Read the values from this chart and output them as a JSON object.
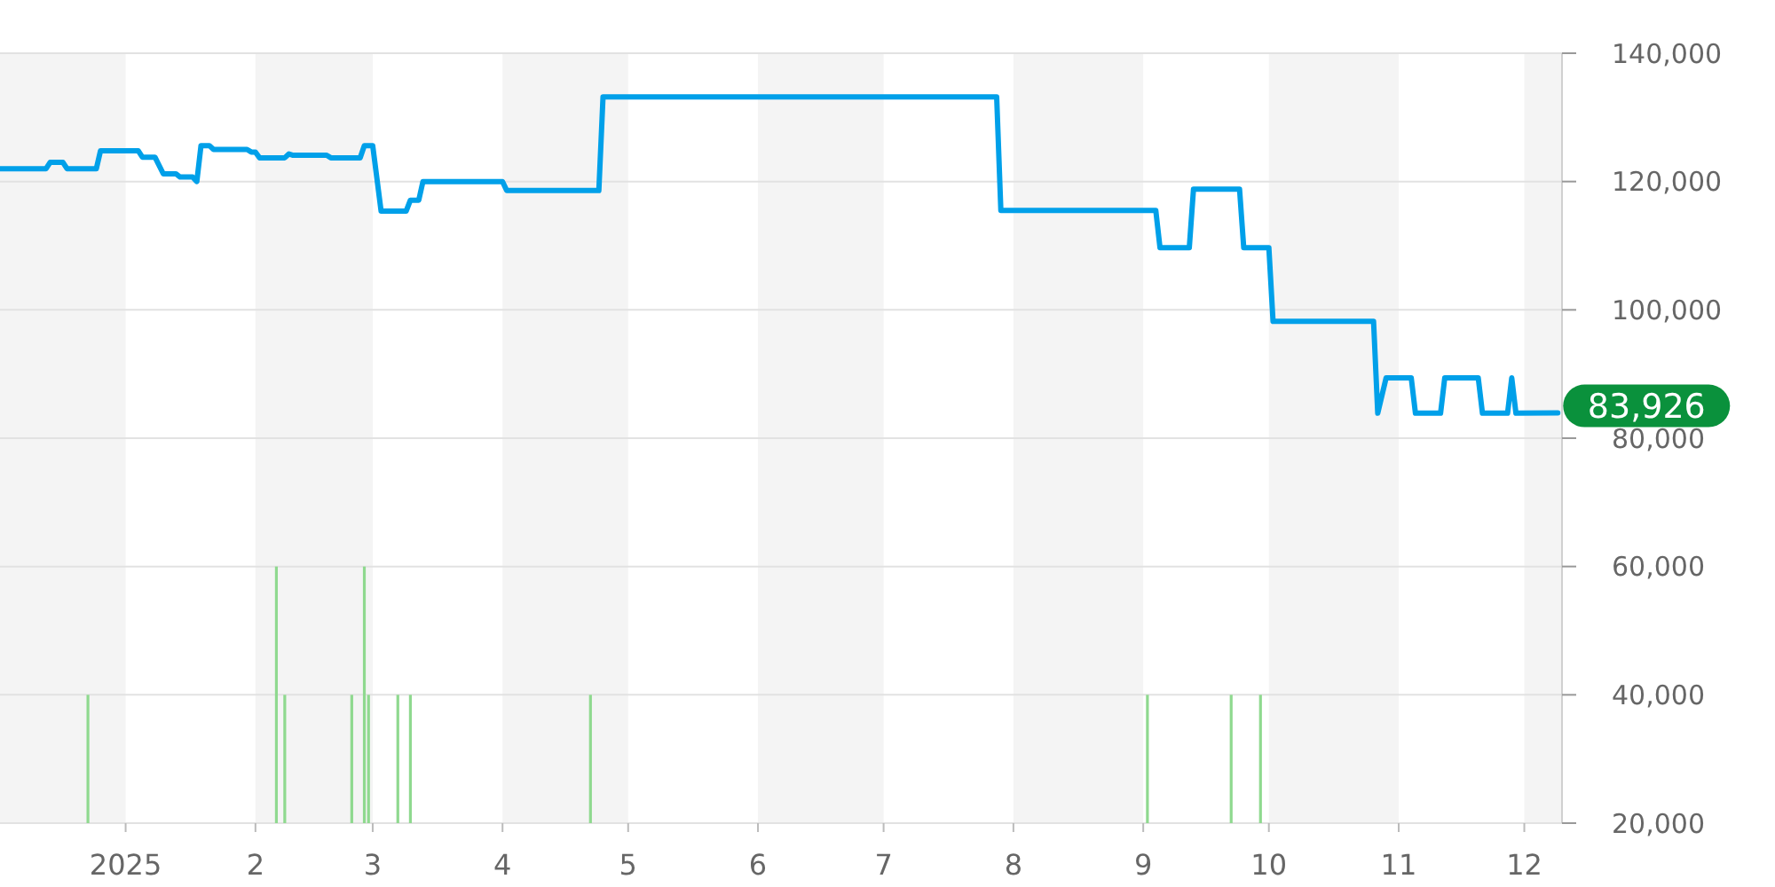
{
  "chart_data": {
    "type": "line",
    "xlim": [
      "2024-12-02",
      "2025-12-10"
    ],
    "xticks": [
      {
        "value": "2025-01-01",
        "label": "2025"
      },
      {
        "value": "2025-02-01",
        "label": "2"
      },
      {
        "value": "2025-03-01",
        "label": "3"
      },
      {
        "value": "2025-04-01",
        "label": "4"
      },
      {
        "value": "2025-05-01",
        "label": "5"
      },
      {
        "value": "2025-06-01",
        "label": "6"
      },
      {
        "value": "2025-07-01",
        "label": "7"
      },
      {
        "value": "2025-08-01",
        "label": "8"
      },
      {
        "value": "2025-09-01",
        "label": "9"
      },
      {
        "value": "2025-10-01",
        "label": "10"
      },
      {
        "value": "2025-11-01",
        "label": "11"
      },
      {
        "value": "2025-12-01",
        "label": "12"
      }
    ],
    "ylim": [
      20000,
      140000
    ],
    "yticks": [
      {
        "value": 20000,
        "label": "20,000"
      },
      {
        "value": 40000,
        "label": "40,000"
      },
      {
        "value": 60000,
        "label": "60,000"
      },
      {
        "value": 80000,
        "label": "80,000"
      },
      {
        "value": 100000,
        "label": "100,000"
      },
      {
        "value": 120000,
        "label": "120,000"
      },
      {
        "value": 140000,
        "label": "140,000"
      }
    ],
    "grid": "y",
    "bands": [
      {
        "axis": "x",
        "from": "2024-12-02",
        "to": "2025-01-01",
        "color": "#f4f4f4"
      },
      {
        "axis": "x",
        "from": "2025-02-01",
        "to": "2025-03-01",
        "color": "#f4f4f4"
      },
      {
        "axis": "x",
        "from": "2025-04-01",
        "to": "2025-05-01",
        "color": "#f4f4f4"
      },
      {
        "axis": "x",
        "from": "2025-06-01",
        "to": "2025-07-01",
        "color": "#f4f4f4"
      },
      {
        "axis": "x",
        "from": "2025-08-01",
        "to": "2025-09-01",
        "color": "#f4f4f4"
      },
      {
        "axis": "x",
        "from": "2025-10-01",
        "to": "2025-11-01",
        "color": "#f4f4f4"
      },
      {
        "axis": "x",
        "from": "2025-12-01",
        "to": "2025-12-10",
        "color": "#f4f4f4"
      }
    ],
    "series": [
      {
        "type": "bar",
        "color": "#8fd98f",
        "x": [
          "2024-12-23",
          "2025-02-06",
          "2025-02-08",
          "2025-02-24",
          "2025-02-27",
          "2025-02-28",
          "2025-03-07",
          "2025-03-10",
          "2025-04-22",
          "2025-09-02",
          "2025-09-22",
          "2025-09-29"
        ],
        "values": [
          40000,
          60000,
          40000,
          40000,
          60000,
          40000,
          40000,
          40000,
          40000,
          40000,
          40000,
          40000
        ]
      },
      {
        "color": "#00a0e9",
        "x": [
          "2024-12-02",
          "2024-12-13",
          "2024-12-14",
          "2024-12-17",
          "2024-12-18",
          "2024-12-25",
          "2024-12-26",
          "2025-01-04",
          "2025-01-05",
          "2025-01-08",
          "2025-01-10",
          "2025-01-13",
          "2025-01-14",
          "2025-01-17",
          "2025-01-18",
          "2025-01-19",
          "2025-01-21",
          "2025-01-22",
          "2025-01-30",
          "2025-01-31",
          "2025-02-01",
          "2025-02-02",
          "2025-02-08",
          "2025-02-09",
          "2025-02-10",
          "2025-02-18",
          "2025-02-19",
          "2025-02-26",
          "2025-02-27",
          "2025-03-01",
          "2025-03-03",
          "2025-03-09",
          "2025-03-10",
          "2025-03-12",
          "2025-03-13",
          "2025-04-01",
          "2025-04-02",
          "2025-04-24",
          "2025-04-25",
          "2025-07-28",
          "2025-07-29",
          "2025-09-04",
          "2025-09-05",
          "2025-09-12",
          "2025-09-13",
          "2025-09-24",
          "2025-09-25",
          "2025-10-01",
          "2025-10-02",
          "2025-10-26",
          "2025-10-27",
          "2025-10-29",
          "2025-11-04",
          "2025-11-05",
          "2025-11-11",
          "2025-11-12",
          "2025-11-20",
          "2025-11-21",
          "2025-11-27",
          "2025-11-28",
          "2025-11-29",
          "2025-12-09"
        ],
        "values": [
          122000,
          122000,
          123000,
          123000,
          122000,
          122000,
          124800,
          124800,
          123800,
          123800,
          121200,
          121200,
          120700,
          120700,
          120000,
          125600,
          125600,
          125000,
          125000,
          124600,
          124600,
          123700,
          123700,
          124300,
          124100,
          124100,
          123700,
          123700,
          125600,
          125600,
          115400,
          115400,
          117100,
          117100,
          120000,
          120000,
          118600,
          118600,
          133200,
          133200,
          115500,
          115500,
          109700,
          109700,
          118800,
          118800,
          109700,
          109700,
          98200,
          98200,
          83900,
          89400,
          89400,
          83900,
          83900,
          89400,
          89400,
          83900,
          83900,
          89400,
          83900,
          83926
        ]
      }
    ],
    "annotations": [
      {
        "text": "83,926",
        "x": "2025-12-09",
        "y": 83926
      }
    ]
  }
}
